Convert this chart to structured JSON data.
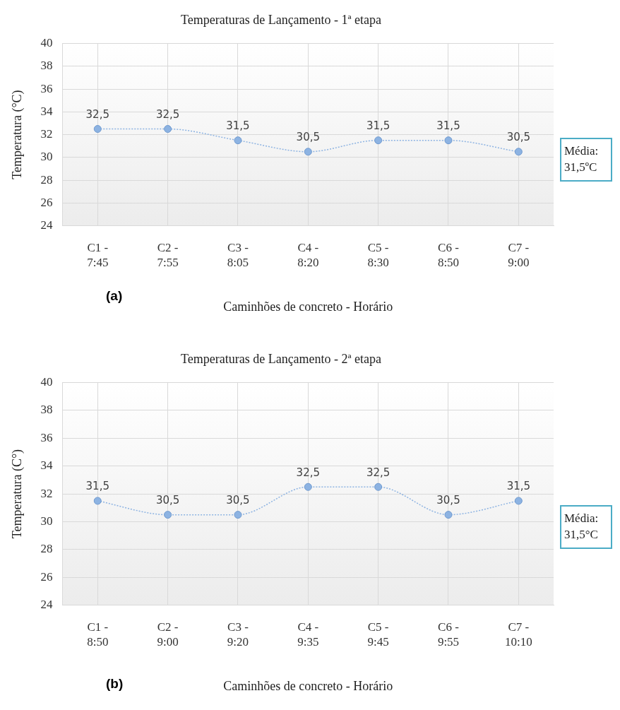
{
  "chart_data": [
    {
      "type": "line",
      "title": "Temperaturas de Lançamento - 1ª etapa",
      "xlabel": "Caminhões de concreto - Horário",
      "ylabel": "Temperatura (°C)",
      "categories": [
        "C1 - 7:45",
        "C2 - 7:55",
        "C3 - 8:05",
        "C4 - 8:20",
        "C5 - 8:30",
        "C6 - 8:50",
        "C7 - 9:00"
      ],
      "series": [
        {
          "color": "#8db3e2",
          "values": [
            32.5,
            32.5,
            31.5,
            30.5,
            31.5,
            31.5,
            30.5
          ],
          "value_labels": [
            "32,5",
            "32,5",
            "31,5",
            "30,5",
            "31,5",
            "31,5",
            "30,5"
          ]
        }
      ],
      "ylim": [
        24,
        40
      ],
      "yticks": [
        24,
        26,
        28,
        30,
        32,
        34,
        36,
        38,
        40
      ],
      "grid": true,
      "legend": false,
      "marker": "circle",
      "line_style": "dotted",
      "annotations": [
        "(a)",
        "Média: 31,5ºC"
      ]
    },
    {
      "type": "line",
      "title": "Temperaturas de Lançamento - 2ª etapa",
      "xlabel": "Caminhões de concreto - Horário",
      "ylabel": "Temperatura (C°)",
      "categories": [
        "C1 - 8:50",
        "C2 - 9:00",
        "C3 - 9:20",
        "C4 - 9:35",
        "C5 - 9:45",
        "C6 - 9:55",
        "C7 - 10:10"
      ],
      "series": [
        {
          "color": "#8db3e2",
          "values": [
            31.5,
            30.5,
            30.5,
            32.5,
            32.5,
            30.5,
            31.5
          ],
          "value_labels": [
            "31,5",
            "30,5",
            "30,5",
            "32,5",
            "32,5",
            "30,5",
            "31,5"
          ]
        }
      ],
      "ylim": [
        24,
        40
      ],
      "yticks": [
        24,
        26,
        28,
        30,
        32,
        34,
        36,
        38,
        40
      ],
      "grid": true,
      "legend": false,
      "marker": "circle",
      "line_style": "dotted",
      "annotations": [
        "(b)",
        "Média: 31,5°C"
      ]
    }
  ]
}
